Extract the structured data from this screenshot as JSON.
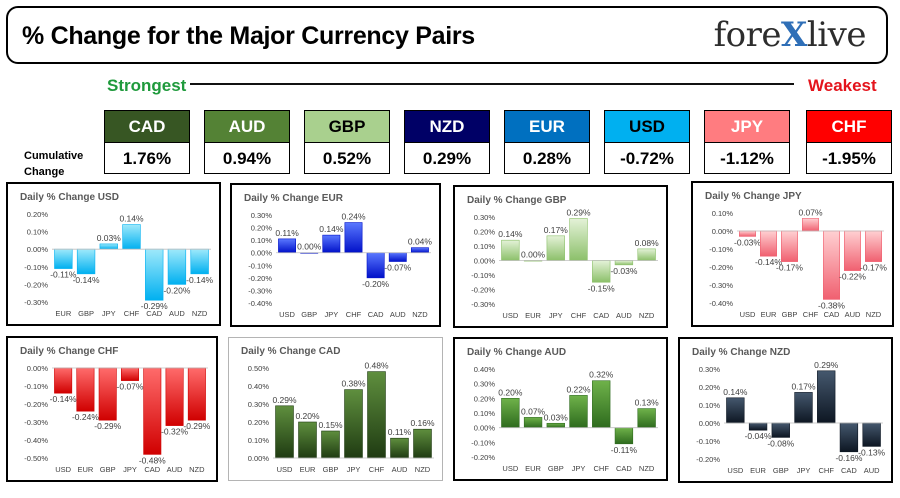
{
  "header": {
    "title": "% Change for the Major Currency Pairs",
    "logo_left": "fore",
    "logo_x": "X",
    "logo_right": "live"
  },
  "strength": {
    "strongest_label": "Strongest",
    "weakest_label": "Weakest"
  },
  "cumulative_label": "Cumulative Change",
  "currencies": [
    {
      "name": "CAD",
      "value": "1.76%",
      "bg": "#375623",
      "fg": "#ffffff"
    },
    {
      "name": "AUD",
      "value": "0.94%",
      "bg": "#548235",
      "fg": "#ffffff"
    },
    {
      "name": "GBP",
      "value": "0.52%",
      "bg": "#a9d08e",
      "fg": "#000000"
    },
    {
      "name": "NZD",
      "value": "0.29%",
      "bg": "#000066",
      "fg": "#ffffff"
    },
    {
      "name": "EUR",
      "value": "0.28%",
      "bg": "#0070c0",
      "fg": "#ffffff"
    },
    {
      "name": "USD",
      "value": "-0.72%",
      "bg": "#00b0f0",
      "fg": "#000000"
    },
    {
      "name": "JPY",
      "value": "-1.12%",
      "bg": "#ff7c80",
      "fg": "#ffffff"
    },
    {
      "name": "CHF",
      "value": "-1.95%",
      "bg": "#ff0000",
      "fg": "#ffffff"
    }
  ],
  "chart_data": [
    {
      "type": "bar",
      "title": "Daily % Change USD",
      "categories": [
        "EUR",
        "GBP",
        "JPY",
        "CHF",
        "CAD",
        "AUD",
        "NZD"
      ],
      "values": [
        -0.11,
        -0.14,
        0.03,
        0.14,
        -0.29,
        -0.2,
        -0.14
      ],
      "labels": [
        "-0.11%",
        "-0.14%",
        "0.03%",
        "0.14%",
        "-0.29%",
        "-0.20%",
        "-0.14%"
      ],
      "ylim": [
        -0.3,
        0.2
      ],
      "yticks": [
        0.2,
        0.1,
        0.0,
        -0.1,
        -0.2,
        -0.3
      ],
      "yticklabels": [
        "0.20%",
        "0.10%",
        "0.00%",
        "-0.10%",
        "-0.20%",
        "-0.30%"
      ],
      "color_top": "#9ee9fb",
      "color_bottom": "#00b0f0"
    },
    {
      "type": "bar",
      "title": "Daily % Change EUR",
      "categories": [
        "USD",
        "GBP",
        "JPY",
        "CHF",
        "CAD",
        "AUD",
        "NZD"
      ],
      "values": [
        0.11,
        0.0,
        0.14,
        0.24,
        -0.2,
        -0.07,
        0.04
      ],
      "labels": [
        "0.11%",
        "0.00%",
        "0.14%",
        "0.24%",
        "-0.20%",
        "-0.07%",
        "0.04%"
      ],
      "ylim": [
        -0.4,
        0.3
      ],
      "yticks": [
        0.3,
        0.2,
        0.1,
        0.0,
        -0.1,
        -0.2,
        -0.3,
        -0.4
      ],
      "yticklabels": [
        "0.30%",
        "0.20%",
        "0.10%",
        "0.00%",
        "-0.10%",
        "-0.20%",
        "-0.30%",
        "-0.40%"
      ],
      "color_top": "#5a78ff",
      "color_bottom": "#0010c8"
    },
    {
      "type": "bar",
      "title": "Daily % Change GBP",
      "categories": [
        "USD",
        "EUR",
        "JPY",
        "CHF",
        "CAD",
        "AUD",
        "NZD"
      ],
      "values": [
        0.14,
        0.0,
        0.17,
        0.29,
        -0.15,
        -0.03,
        0.08
      ],
      "labels": [
        "0.14%",
        "0.00%",
        "0.17%",
        "0.29%",
        "-0.15%",
        "-0.03%",
        "0.08%"
      ],
      "ylim": [
        -0.3,
        0.3
      ],
      "yticks": [
        0.3,
        0.2,
        0.1,
        0.0,
        -0.1,
        -0.2,
        -0.3
      ],
      "yticklabels": [
        "0.30%",
        "0.20%",
        "0.10%",
        "0.00%",
        "-0.10%",
        "-0.20%",
        "-0.30%"
      ],
      "color_top": "#e4f2d8",
      "color_bottom": "#8cc06a"
    },
    {
      "type": "bar",
      "title": "Daily % Change JPY",
      "categories": [
        "USD",
        "EUR",
        "GBP",
        "CHF",
        "CAD",
        "AUD",
        "NZD"
      ],
      "values": [
        -0.03,
        -0.14,
        -0.17,
        0.07,
        -0.38,
        -0.22,
        -0.17
      ],
      "labels": [
        "-0.03%",
        "-0.14%",
        "-0.17%",
        "0.07%",
        "-0.38%",
        "-0.22%",
        "-0.17%"
      ],
      "ylim": [
        -0.4,
        0.1
      ],
      "yticks": [
        0.1,
        0.0,
        -0.1,
        -0.2,
        -0.3,
        -0.4
      ],
      "yticklabels": [
        "0.10%",
        "0.00%",
        "-0.10%",
        "-0.20%",
        "-0.30%",
        "-0.40%"
      ],
      "color_top": "#ffd0d2",
      "color_bottom": "#f06070"
    },
    {
      "type": "bar",
      "title": "Daily % Change CHF",
      "categories": [
        "USD",
        "EUR",
        "GBP",
        "JPY",
        "CAD",
        "AUD",
        "NZD"
      ],
      "values": [
        -0.14,
        -0.24,
        -0.29,
        -0.07,
        -0.48,
        -0.32,
        -0.29
      ],
      "labels": [
        "-0.14%",
        "-0.24%",
        "-0.29%",
        "-0.07%",
        "-0.48%",
        "-0.32%",
        "-0.29%"
      ],
      "ylim": [
        -0.5,
        0.0
      ],
      "yticks": [
        0.0,
        -0.1,
        -0.2,
        -0.3,
        -0.4,
        -0.5
      ],
      "yticklabels": [
        "0.00%",
        "-0.10%",
        "-0.20%",
        "-0.30%",
        "-0.40%",
        "-0.50%"
      ],
      "color_top": "#ff6b6b",
      "color_bottom": "#d00000"
    },
    {
      "type": "bar",
      "title": "Daily % Change CAD",
      "categories": [
        "USD",
        "EUR",
        "GBP",
        "JPY",
        "CHF",
        "AUD",
        "NZD"
      ],
      "values": [
        0.29,
        0.2,
        0.15,
        0.38,
        0.48,
        0.11,
        0.16
      ],
      "labels": [
        "0.29%",
        "0.20%",
        "0.15%",
        "0.38%",
        "0.48%",
        "0.11%",
        "0.16%"
      ],
      "ylim": [
        0.0,
        0.5
      ],
      "yticks": [
        0.5,
        0.4,
        0.3,
        0.2,
        0.1,
        0.0
      ],
      "yticklabels": [
        "0.50%",
        "0.40%",
        "0.30%",
        "0.20%",
        "0.10%",
        "0.00%"
      ],
      "color_top": "#5f8f3e",
      "color_bottom": "#1f3b12"
    },
    {
      "type": "bar",
      "title": "Daily % Change AUD",
      "categories": [
        "USD",
        "EUR",
        "GBP",
        "JPY",
        "CHF",
        "CAD",
        "NZD"
      ],
      "values": [
        0.2,
        0.07,
        0.03,
        0.22,
        0.32,
        -0.11,
        0.13
      ],
      "labels": [
        "0.20%",
        "0.07%",
        "0.03%",
        "0.22%",
        "0.32%",
        "-0.11%",
        "0.13%"
      ],
      "ylim": [
        -0.2,
        0.4
      ],
      "yticks": [
        0.4,
        0.3,
        0.2,
        0.1,
        0.0,
        -0.1,
        -0.2
      ],
      "yticklabels": [
        "0.40%",
        "0.30%",
        "0.20%",
        "0.10%",
        "0.00%",
        "-0.10%",
        "-0.20%"
      ],
      "color_top": "#6fb24a",
      "color_bottom": "#2e6b1e"
    },
    {
      "type": "bar",
      "title": "Daily % Change NZD",
      "categories": [
        "USD",
        "EUR",
        "GBP",
        "JPY",
        "CHF",
        "CAD",
        "AUD"
      ],
      "values": [
        0.14,
        -0.04,
        -0.08,
        0.17,
        0.29,
        -0.16,
        -0.13
      ],
      "labels": [
        "0.14%",
        "-0.04%",
        "-0.08%",
        "0.17%",
        "0.29%",
        "-0.16%",
        "-0.13%"
      ],
      "ylim": [
        -0.2,
        0.3
      ],
      "yticks": [
        0.3,
        0.2,
        0.1,
        0.0,
        -0.1,
        -0.2
      ],
      "yticklabels": [
        "0.30%",
        "0.20%",
        "0.10%",
        "0.00%",
        "-0.10%",
        "-0.20%"
      ],
      "color_top": "#45586e",
      "color_bottom": "#0d1622"
    }
  ]
}
